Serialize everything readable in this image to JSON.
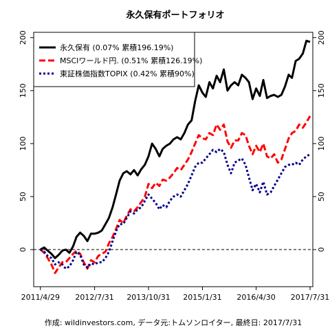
{
  "chart_data": {
    "type": "line",
    "title": "永久保有ポートフォリオ",
    "caption": "作成: wildinvestors.com, データ元:トムソンロイター, 最終日: 2017/7/31",
    "xlabel": "",
    "ylabel": "",
    "x_range": [
      "2011/4/1",
      "2017/7/31"
    ],
    "x_ticks": [
      "2011/4/29",
      "2012/7/31",
      "2013/10/31",
      "2015/1/31",
      "2016/4/30",
      "2017/7/31"
    ],
    "x_tick_dates": [
      "2011-04-29",
      "2012-07-31",
      "2013-10-31",
      "2015-01-31",
      "2016-04-30",
      "2017-07-31"
    ],
    "ylim": [
      -35,
      205
    ],
    "y_ticks": [
      0,
      50,
      100,
      150,
      200
    ],
    "y_axes": "left-and-right",
    "grid": false,
    "zero_line": "dashed",
    "legend_position": "top-left",
    "series": [
      {
        "name": "永久保有 (0.07% 累積196.19%)",
        "color": "#000000",
        "style": "solid",
        "x": [
          "2011-04-29",
          "2011-05-31",
          "2011-06-30",
          "2011-07-31",
          "2011-08-31",
          "2011-09-30",
          "2011-10-31",
          "2011-11-30",
          "2011-12-31",
          "2012-01-31",
          "2012-02-29",
          "2012-03-31",
          "2012-04-30",
          "2012-05-31",
          "2012-06-30",
          "2012-07-31",
          "2012-08-31",
          "2012-09-30",
          "2012-10-31",
          "2012-11-30",
          "2012-12-31",
          "2013-01-31",
          "2013-02-28",
          "2013-03-31",
          "2013-04-30",
          "2013-05-31",
          "2013-06-30",
          "2013-07-31",
          "2013-08-31",
          "2013-09-30",
          "2013-10-31",
          "2013-11-30",
          "2013-12-31",
          "2014-01-31",
          "2014-02-28",
          "2014-03-31",
          "2014-04-30",
          "2014-05-31",
          "2014-06-30",
          "2014-07-31",
          "2014-08-31",
          "2014-09-30",
          "2014-10-31",
          "2014-11-30",
          "2014-12-31",
          "2015-01-31",
          "2015-02-28",
          "2015-03-31",
          "2015-04-30",
          "2015-05-31",
          "2015-06-30",
          "2015-07-31",
          "2015-08-31",
          "2015-09-30",
          "2015-10-31",
          "2015-11-30",
          "2015-12-31",
          "2016-01-31",
          "2016-02-29",
          "2016-03-31",
          "2016-04-30",
          "2016-05-31",
          "2016-06-30",
          "2016-07-31",
          "2016-08-31",
          "2016-09-30",
          "2016-10-31",
          "2016-11-30",
          "2016-12-31",
          "2017-01-31",
          "2017-02-28",
          "2017-03-31",
          "2017-04-30",
          "2017-05-31",
          "2017-06-30",
          "2017-07-31"
        ],
        "values": [
          0,
          2,
          -1,
          -4,
          -8,
          -5,
          -1,
          0,
          -3,
          3,
          12,
          16,
          13,
          8,
          15,
          15,
          16,
          18,
          24,
          30,
          40,
          53,
          65,
          72,
          74,
          71,
          75,
          70,
          76,
          80,
          88,
          100,
          95,
          88,
          95,
          98,
          100,
          104,
          106,
          104,
          110,
          118,
          122,
          140,
          155,
          148,
          144,
          158,
          152,
          164,
          158,
          170,
          150,
          155,
          158,
          155,
          165,
          162,
          158,
          142,
          152,
          145,
          160,
          143,
          145,
          146,
          144,
          146,
          154,
          165,
          162,
          178,
          180,
          185,
          197,
          196
        ]
      },
      {
        "name": "MSCIワールド円. (0.51% 累積126.19%)",
        "color": "#ff0000",
        "style": "dashed",
        "x": [
          "2011-04-29",
          "2011-05-31",
          "2011-06-30",
          "2011-07-31",
          "2011-08-31",
          "2011-09-30",
          "2011-10-31",
          "2011-11-30",
          "2011-12-31",
          "2012-01-31",
          "2012-02-29",
          "2012-03-31",
          "2012-04-30",
          "2012-05-31",
          "2012-06-30",
          "2012-07-31",
          "2012-08-31",
          "2012-09-30",
          "2012-10-31",
          "2012-11-30",
          "2012-12-31",
          "2013-01-31",
          "2013-02-28",
          "2013-03-31",
          "2013-04-30",
          "2013-05-31",
          "2013-06-30",
          "2013-07-31",
          "2013-08-31",
          "2013-09-30",
          "2013-10-31",
          "2013-11-30",
          "2013-12-31",
          "2014-01-31",
          "2014-02-28",
          "2014-03-31",
          "2014-04-30",
          "2014-05-31",
          "2014-06-30",
          "2014-07-31",
          "2014-08-31",
          "2014-09-30",
          "2014-10-31",
          "2014-11-30",
          "2014-12-31",
          "2015-01-31",
          "2015-02-28",
          "2015-03-31",
          "2015-04-30",
          "2015-05-31",
          "2015-06-30",
          "2015-07-31",
          "2015-08-31",
          "2015-09-30",
          "2015-10-31",
          "2015-11-30",
          "2015-12-31",
          "2016-01-31",
          "2016-02-29",
          "2016-03-31",
          "2016-04-30",
          "2016-05-31",
          "2016-06-30",
          "2016-07-31",
          "2016-08-31",
          "2016-09-30",
          "2016-10-31",
          "2016-11-30",
          "2016-12-31",
          "2017-01-31",
          "2017-02-28",
          "2017-03-31",
          "2017-04-30",
          "2017-05-31",
          "2017-06-30",
          "2017-07-31"
        ],
        "values": [
          0,
          -3,
          -8,
          -14,
          -22,
          -17,
          -12,
          -12,
          -8,
          -4,
          -1,
          -4,
          -12,
          -18,
          -10,
          -12,
          -6,
          -4,
          -2,
          6,
          12,
          20,
          28,
          25,
          32,
          38,
          36,
          40,
          45,
          50,
          62,
          58,
          63,
          60,
          66,
          65,
          68,
          72,
          77,
          75,
          80,
          85,
          92,
          100,
          108,
          105,
          104,
          110,
          108,
          118,
          113,
          118,
          102,
          96,
          103,
          103,
          110,
          108,
          98,
          90,
          98,
          92,
          100,
          88,
          86,
          90,
          82,
          85,
          95,
          105,
          110,
          112,
          118,
          115,
          120,
          126
        ]
      },
      {
        "name": "東証株価指数TOPIX (0.42% 累積90%)",
        "color": "#00008b",
        "style": "dotted",
        "x": [
          "2011-04-29",
          "2011-05-31",
          "2011-06-30",
          "2011-07-31",
          "2011-08-31",
          "2011-09-30",
          "2011-10-31",
          "2011-11-30",
          "2011-12-31",
          "2012-01-31",
          "2012-02-29",
          "2012-03-31",
          "2012-04-30",
          "2012-05-31",
          "2012-06-30",
          "2012-07-31",
          "2012-08-31",
          "2012-09-30",
          "2012-10-31",
          "2012-11-30",
          "2012-12-31",
          "2013-01-31",
          "2013-02-28",
          "2013-03-31",
          "2013-04-30",
          "2013-05-31",
          "2013-06-30",
          "2013-07-31",
          "2013-08-31",
          "2013-09-30",
          "2013-10-31",
          "2013-11-30",
          "2013-12-31",
          "2014-01-31",
          "2014-02-28",
          "2014-03-31",
          "2014-04-30",
          "2014-05-31",
          "2014-06-30",
          "2014-07-31",
          "2014-08-31",
          "2014-09-30",
          "2014-10-31",
          "2014-11-30",
          "2014-12-31",
          "2015-01-31",
          "2015-02-28",
          "2015-03-31",
          "2015-04-30",
          "2015-05-31",
          "2015-06-30",
          "2015-07-31",
          "2015-08-31",
          "2015-09-30",
          "2015-10-31",
          "2015-11-30",
          "2015-12-31",
          "2016-01-31",
          "2016-02-29",
          "2016-03-31",
          "2016-04-30",
          "2016-05-31",
          "2016-06-30",
          "2016-07-31",
          "2016-08-31",
          "2016-09-30",
          "2016-10-31",
          "2016-11-30",
          "2016-12-31",
          "2017-01-31",
          "2017-02-28",
          "2017-03-31",
          "2017-04-30",
          "2017-05-31",
          "2017-06-30",
          "2017-07-31"
        ],
        "values": [
          0,
          -2,
          -6,
          -8,
          -14,
          -12,
          -14,
          -18,
          -16,
          -10,
          -2,
          -5,
          -14,
          -17,
          -13,
          -14,
          -12,
          -12,
          -8,
          -2,
          8,
          18,
          24,
          24,
          30,
          36,
          34,
          38,
          40,
          46,
          52,
          48,
          44,
          38,
          42,
          40,
          46,
          50,
          52,
          50,
          56,
          62,
          70,
          78,
          82,
          82,
          86,
          90,
          94,
          92,
          95,
          92,
          80,
          72,
          82,
          84,
          86,
          80,
          68,
          56,
          62,
          54,
          64,
          52,
          54,
          60,
          66,
          72,
          78,
          80,
          80,
          82,
          80,
          85,
          88,
          90
        ]
      }
    ]
  }
}
